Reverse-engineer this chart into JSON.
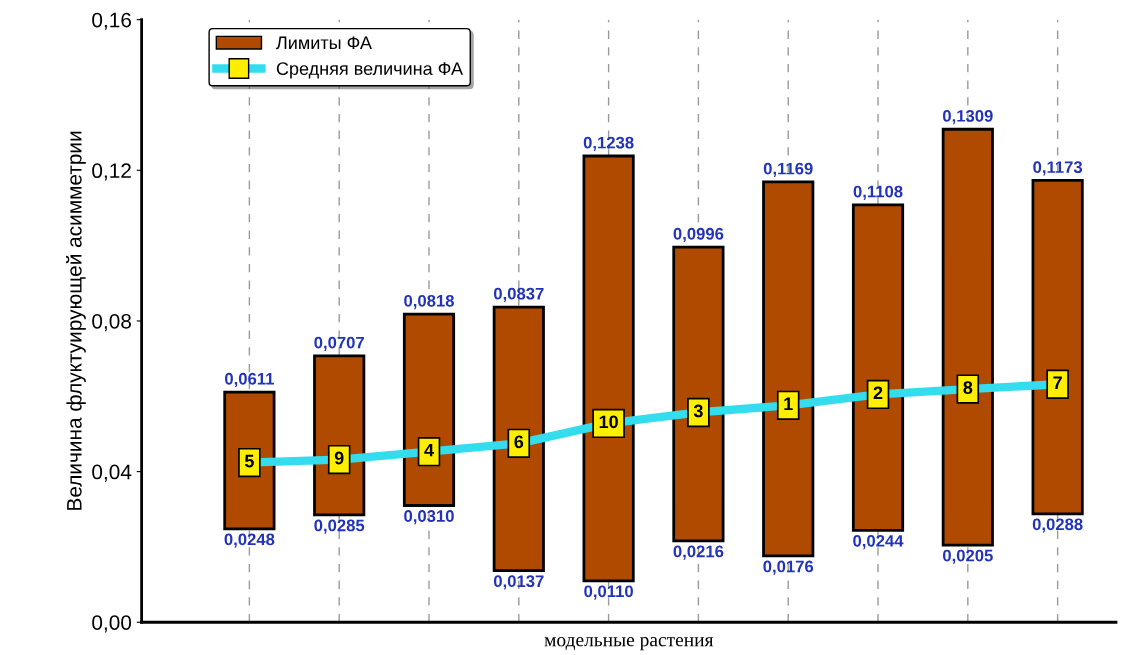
{
  "chart_data": {
    "type": "bar",
    "xlabel": "модельные растения",
    "ylabel": "Величина флуктуирующей асимметрии",
    "categories": [
      null,
      null,
      null,
      null,
      null,
      null,
      null,
      null,
      null,
      null
    ],
    "ylim": [
      0,
      0.16
    ],
    "yticks": [
      {
        "value": 0,
        "label": "0,00"
      },
      {
        "value": 0.04,
        "label": "0,04"
      },
      {
        "value": 0.08,
        "label": "0,08"
      },
      {
        "value": 0.12,
        "label": "0,12"
      },
      {
        "value": 0.16,
        "label": "0,16"
      }
    ],
    "grid": "x",
    "legend": "top left",
    "series": [
      {
        "name": "Лимиты ФА",
        "color": "#b04a00",
        "base": [
          0.0248,
          0.0285,
          0.031,
          0.0137,
          0.011,
          0.0216,
          0.0176,
          0.0244,
          0.0205,
          0.0288
        ],
        "values": [
          0.0363,
          0.0422,
          0.0508,
          0.07,
          0.1128,
          0.078,
          0.0993,
          0.0864,
          0.1104,
          0.0885
        ]
      },
      {
        "name": "Средняя величина ФА",
        "type": "line",
        "color": "#33ddee",
        "marker": "square",
        "values": [
          0.0424,
          0.0432,
          0.0453,
          0.0475,
          0.0528,
          0.0557,
          0.0576,
          0.0605,
          0.0619,
          0.0632
        ]
      }
    ],
    "annotations": [
      {
        "text": "0,0611",
        "y": 0.0611
      },
      {
        "text": "0,0248",
        "y": 0.0248
      },
      {
        "text": "0,0707",
        "y": 0.0707
      },
      {
        "text": "0,0285",
        "y": 0.0285
      },
      {
        "text": "0,0818",
        "y": 0.0818
      },
      {
        "text": "0,0310",
        "y": 0.031
      },
      {
        "text": "0,0837",
        "y": 0.0837
      },
      {
        "text": "0,0137",
        "y": 0.0137
      },
      {
        "text": "0,1238",
        "y": 0.1238
      },
      {
        "text": "0,0110",
        "y": 0.011
      },
      {
        "text": "0,0996",
        "y": 0.0996
      },
      {
        "text": "0,0216",
        "y": 0.0216
      },
      {
        "text": "0,1169",
        "y": 0.1169
      },
      {
        "text": "0,0176",
        "y": 0.0176
      },
      {
        "text": "0,1108",
        "y": 0.1108
      },
      {
        "text": "0,0244",
        "y": 0.0244
      },
      {
        "text": "0,1309",
        "y": 0.1309
      },
      {
        "text": "0,0205",
        "y": 0.0205
      },
      {
        "text": "0,1173",
        "y": 0.1173
      },
      {
        "text": "0,0288",
        "y": 0.0288
      },
      {
        "text": "5",
        "y": 0.0424
      },
      {
        "text": "9",
        "y": 0.0432
      },
      {
        "text": "4",
        "y": 0.0453
      },
      {
        "text": "6",
        "y": 0.0475
      },
      {
        "text": "10",
        "y": 0.0528
      },
      {
        "text": "3",
        "y": 0.0557
      },
      {
        "text": "1",
        "y": 0.0576
      },
      {
        "text": "2",
        "y": 0.0605
      },
      {
        "text": "8",
        "y": 0.0619
      },
      {
        "text": "7",
        "y": 0.0632
      }
    ]
  }
}
